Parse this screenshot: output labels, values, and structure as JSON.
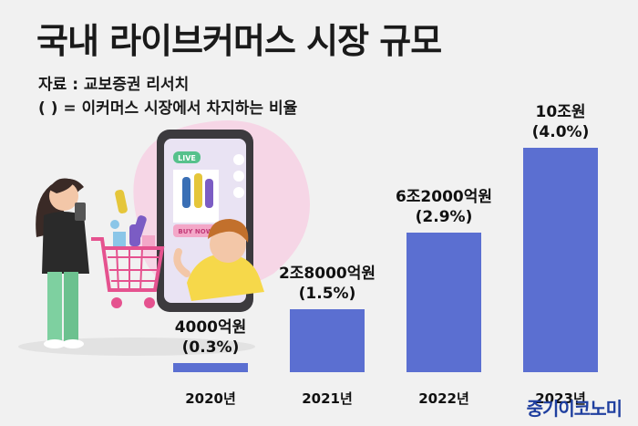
{
  "header": {
    "title": "국내 라이브커머스 시장 규모",
    "source": "자료 : 교보증권 리서치",
    "note": "(   ) = 이커머스 시장에서 차지하는 비율"
  },
  "illustration": {
    "live_badge": "LIVE",
    "buy_button": "BUY NOW!"
  },
  "watermark": "중기이코노미",
  "chart_data": {
    "type": "bar",
    "categories": [
      "2020년",
      "2021년",
      "2022년",
      "2023년"
    ],
    "values": [
      4000,
      28000,
      62000,
      100000
    ],
    "value_unit": "억원",
    "value_labels": [
      "4000억원",
      "2조8000억원",
      "6조2000억원",
      "10조원"
    ],
    "share_labels": [
      "(0.3%)",
      "(1.5%)",
      "(2.9%)",
      "(4.0%)"
    ],
    "title": "국내 라이브커머스 시장 규모",
    "xlabel": "",
    "ylabel": "",
    "ylim": [
      0,
      100000
    ],
    "grid": false,
    "colors": {
      "bar": "#5b6fd1"
    }
  }
}
